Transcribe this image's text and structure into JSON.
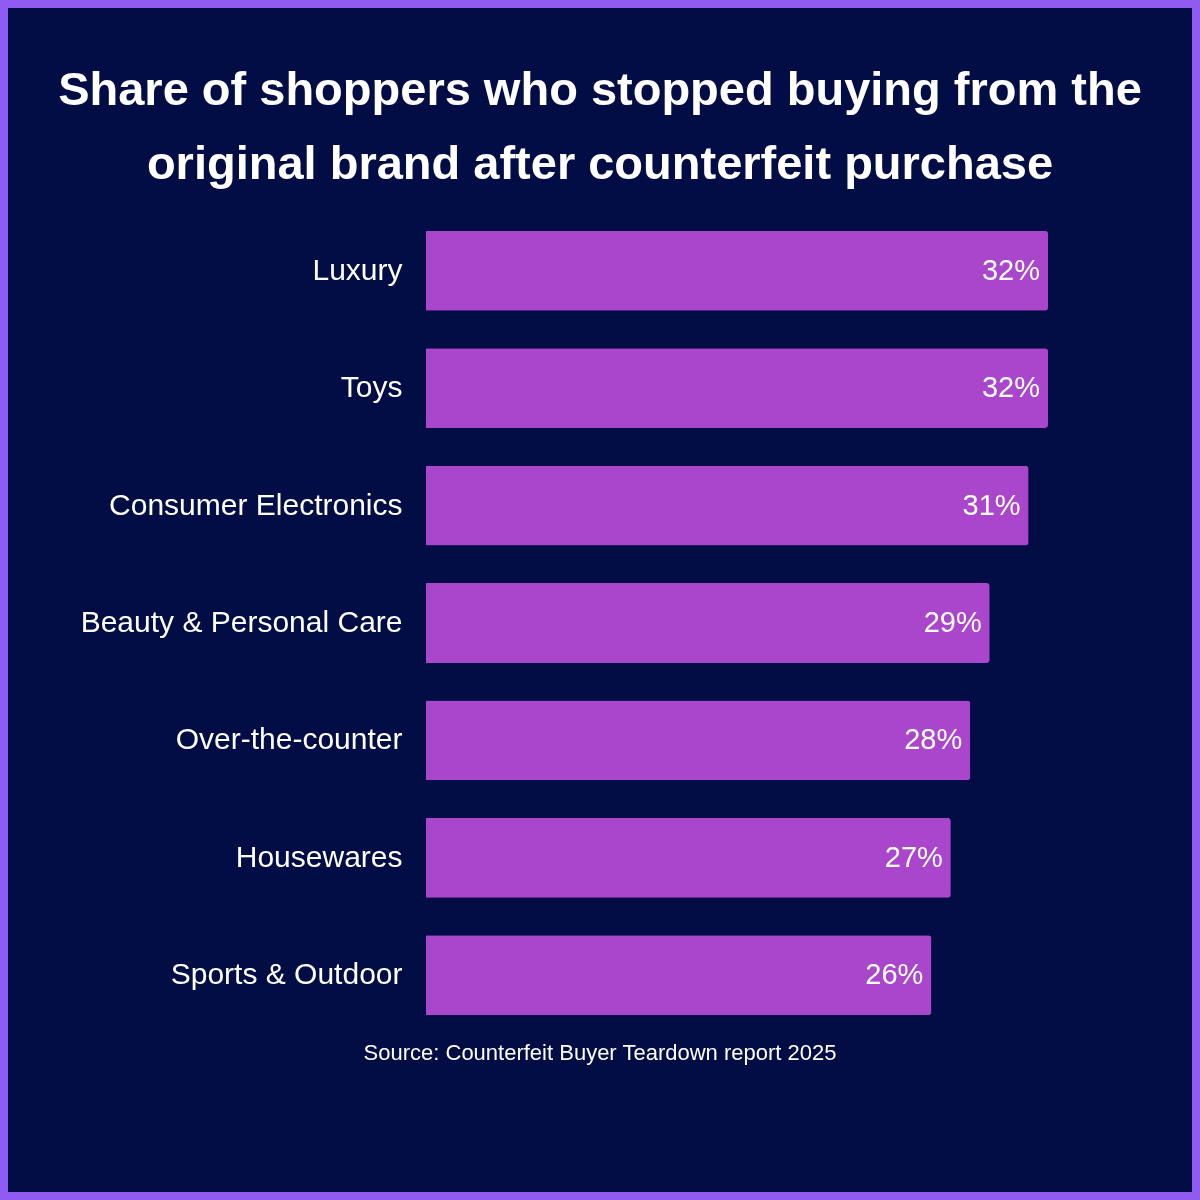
{
  "chart_data": {
    "type": "bar",
    "orientation": "horizontal",
    "title": "Share of shoppers who stopped buying from the original brand after counterfeit purchase",
    "categories": [
      "Luxury",
      "Toys",
      "Consumer Electronics",
      "Beauty & Personal Care",
      "Over-the-counter",
      "Housewares",
      "Sports & Outdoor"
    ],
    "values": [
      32,
      32,
      31,
      29,
      28,
      27,
      26
    ],
    "value_labels": [
      "32%",
      "32%",
      "31%",
      "29%",
      "28%",
      "27%",
      "26%"
    ],
    "color": "#a946cc",
    "annotations": [
      "Source: Counterfeit Buyer Teardown report 2025"
    ]
  }
}
